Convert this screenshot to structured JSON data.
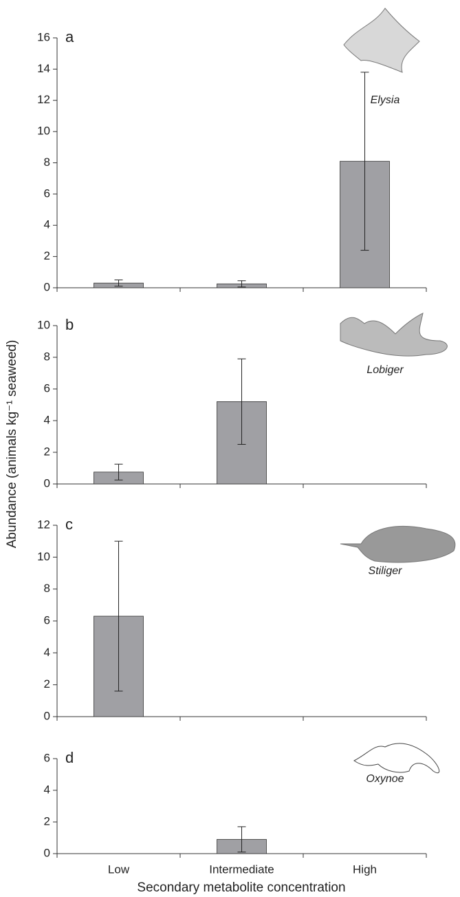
{
  "chart_data": [
    {
      "type": "bar",
      "panel": "a",
      "species": "Elysia",
      "ylabel": "Abundance (animals kg⁻¹ seaweed)",
      "values": [
        0.3,
        0.25,
        8.1
      ],
      "errors": [
        0.2,
        0.2,
        5.7
      ],
      "color": "#a0a0a4",
      "ylim": [
        0,
        16
      ],
      "yticks": [
        0,
        2,
        4,
        6,
        8,
        10,
        12,
        14,
        16
      ]
    },
    {
      "type": "bar",
      "panel": "b",
      "species": "Lobiger",
      "values": [
        0.75,
        5.2,
        0
      ],
      "errors": [
        0.5,
        2.7,
        0
      ],
      "color": "#a0a0a4",
      "ylim": [
        0,
        10
      ],
      "yticks": [
        0,
        2,
        4,
        6,
        8,
        10
      ]
    },
    {
      "type": "bar",
      "panel": "c",
      "species": "Stiliger",
      "values": [
        6.3,
        0,
        0
      ],
      "errors": [
        4.7,
        0,
        0
      ],
      "color": "#a0a0a4",
      "ylim": [
        0,
        12
      ],
      "yticks": [
        0,
        2,
        4,
        6,
        8,
        10,
        12
      ]
    },
    {
      "type": "bar",
      "panel": "d",
      "species": "Oxynoe",
      "xlabel": "Secondary metabolite concentration",
      "categories": [
        "Low",
        "Intermediate",
        "High"
      ],
      "values": [
        0,
        0.9,
        0
      ],
      "errors": [
        0,
        0.8,
        0
      ],
      "color": "#a0a0a4",
      "ylim": [
        0,
        6
      ],
      "yticks": [
        0,
        2,
        4,
        6
      ]
    }
  ]
}
